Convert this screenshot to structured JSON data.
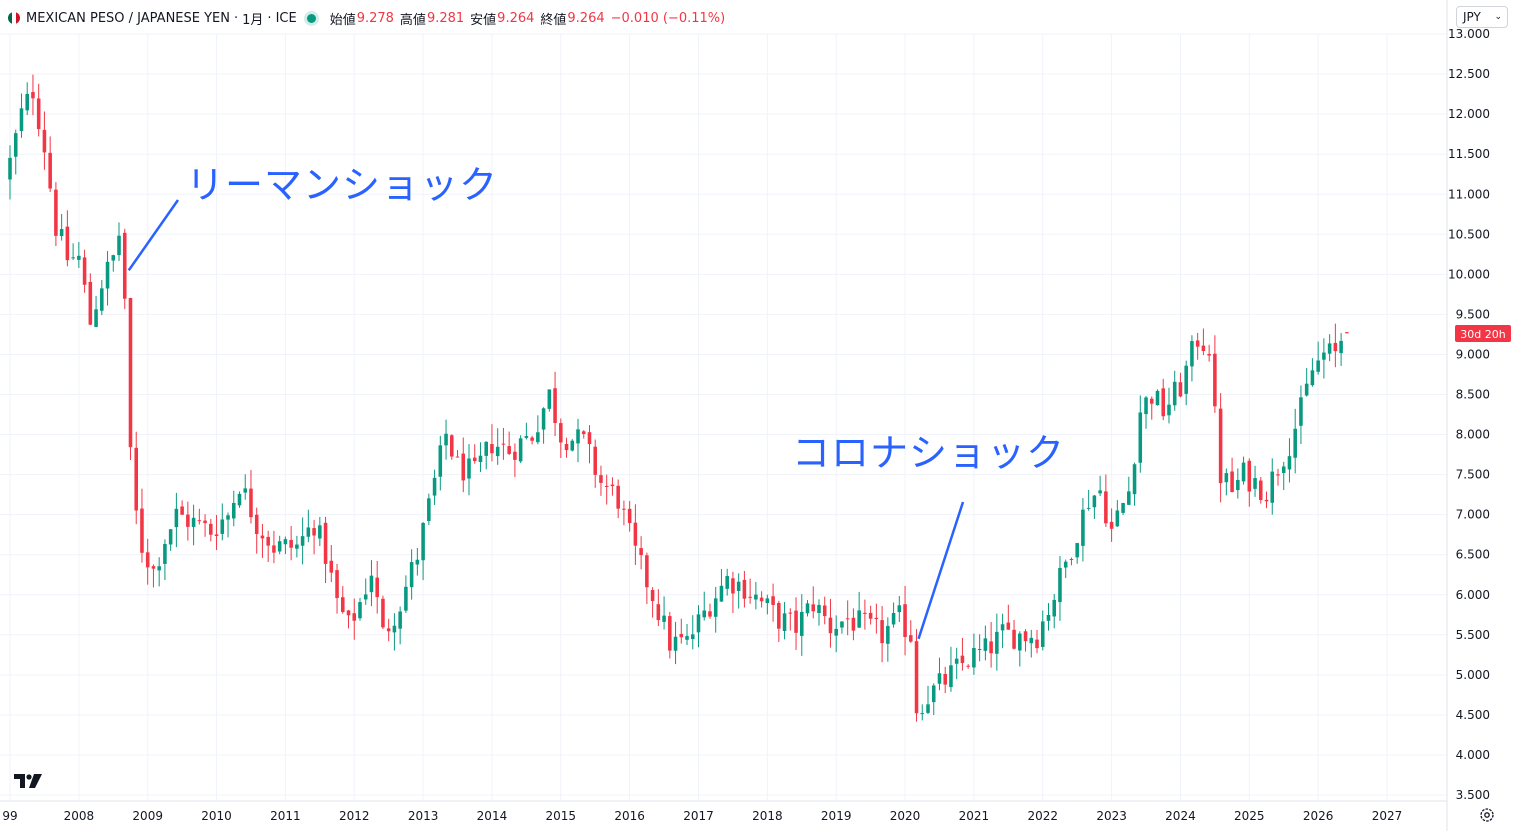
{
  "header": {
    "symbol": "MEXICAN PESO / JAPANESE YEN",
    "sep1": "·",
    "interval": "1月",
    "sep2": "·",
    "exchange": "ICE",
    "open_label": "始値",
    "open_value": "9.278",
    "high_label": "高値",
    "high_value": "9.281",
    "low_label": "安値",
    "low_value": "9.264",
    "close_label": "終値",
    "close_value": "9.264",
    "change": "−0.010 (−0.11%)"
  },
  "currency_selector": {
    "value": "JPY"
  },
  "price_tag": {
    "value": "30d 20h"
  },
  "annotations": {
    "lehman": "リーマンショック",
    "corona": "コロナショック"
  },
  "colors": {
    "up": "#089981",
    "down": "#f23645",
    "annotation": "#2962ff",
    "grid": "#f0f3fa"
  },
  "chart_data": {
    "type": "candlestick",
    "x_range": [
      "2006-12",
      "2027-06"
    ],
    "ylim": [
      3.5,
      13.0
    ],
    "y_ticks": [
      "3.500",
      "4.000",
      "4.500",
      "5.000",
      "5.500",
      "6.000",
      "6.500",
      "7.000",
      "7.500",
      "8.000",
      "8.500",
      "9.000",
      "9.500",
      "10.000",
      "10.500",
      "11.000",
      "11.500",
      "12.000",
      "12.500",
      "13.000"
    ],
    "x_ticks": [
      "99",
      "2008",
      "2009",
      "2010",
      "2011",
      "2012",
      "2013",
      "2014",
      "2015",
      "2016",
      "2017",
      "2018",
      "2019",
      "2020",
      "2021",
      "2022",
      "2023",
      "2024",
      "2025",
      "2026",
      "2027"
    ],
    "x_tick_dates": [
      "2007-01",
      "2008-01",
      "2009-01",
      "2010-01",
      "2011-01",
      "2012-01",
      "2013-01",
      "2014-01",
      "2015-01",
      "2016-01",
      "2017-01",
      "2018-01",
      "2019-01",
      "2020-01",
      "2021-01",
      "2022-01",
      "2023-01",
      "2024-01",
      "2025-01",
      "2026-01",
      "2027-01"
    ],
    "grid": true,
    "legend": "none",
    "closes": [
      {
        "date": "2007-01",
        "close": 11.4
      },
      {
        "date": "2007-03",
        "close": 12.0
      },
      {
        "date": "2007-05",
        "close": 12.3
      },
      {
        "date": "2007-07",
        "close": 11.6
      },
      {
        "date": "2007-09",
        "close": 10.6
      },
      {
        "date": "2007-11",
        "close": 10.2
      },
      {
        "date": "2008-01",
        "close": 10.2
      },
      {
        "date": "2008-03",
        "close": 9.4
      },
      {
        "date": "2008-05",
        "close": 9.9
      },
      {
        "date": "2008-07",
        "close": 10.2
      },
      {
        "date": "2008-08",
        "close": 10.5
      },
      {
        "date": "2008-09",
        "close": 9.7
      },
      {
        "date": "2008-10",
        "close": 7.7
      },
      {
        "date": "2008-11",
        "close": 7.0
      },
      {
        "date": "2008-12",
        "close": 6.6
      },
      {
        "date": "2009-02",
        "close": 6.3
      },
      {
        "date": "2009-04",
        "close": 6.7
      },
      {
        "date": "2009-06",
        "close": 7.0
      },
      {
        "date": "2009-09",
        "close": 6.9
      },
      {
        "date": "2009-12",
        "close": 6.8
      },
      {
        "date": "2010-03",
        "close": 7.0
      },
      {
        "date": "2010-05",
        "close": 7.4
      },
      {
        "date": "2010-08",
        "close": 6.9
      },
      {
        "date": "2010-11",
        "close": 6.6
      },
      {
        "date": "2011-03",
        "close": 6.6
      },
      {
        "date": "2011-06",
        "close": 6.9
      },
      {
        "date": "2011-08",
        "close": 6.5
      },
      {
        "date": "2011-10",
        "close": 5.9
      },
      {
        "date": "2011-12",
        "close": 5.6
      },
      {
        "date": "2012-02",
        "close": 5.9
      },
      {
        "date": "2012-04",
        "close": 6.3
      },
      {
        "date": "2012-06",
        "close": 5.5
      },
      {
        "date": "2012-09",
        "close": 5.9
      },
      {
        "date": "2012-12",
        "close": 6.5
      },
      {
        "date": "2013-03",
        "close": 7.4
      },
      {
        "date": "2013-05",
        "close": 8.0
      },
      {
        "date": "2013-07",
        "close": 7.6
      },
      {
        "date": "2013-10",
        "close": 7.5
      },
      {
        "date": "2014-01",
        "close": 7.9
      },
      {
        "date": "2014-04",
        "close": 7.8
      },
      {
        "date": "2014-08",
        "close": 8.0
      },
      {
        "date": "2014-11",
        "close": 8.5
      },
      {
        "date": "2015-01",
        "close": 8.0
      },
      {
        "date": "2015-05",
        "close": 7.9
      },
      {
        "date": "2015-08",
        "close": 7.4
      },
      {
        "date": "2015-11",
        "close": 7.2
      },
      {
        "date": "2016-02",
        "close": 6.5
      },
      {
        "date": "2016-05",
        "close": 6.0
      },
      {
        "date": "2016-08",
        "close": 5.4
      },
      {
        "date": "2016-11",
        "close": 5.4
      },
      {
        "date": "2017-03",
        "close": 5.9
      },
      {
        "date": "2017-06",
        "close": 6.2
      },
      {
        "date": "2017-09",
        "close": 6.1
      },
      {
        "date": "2017-12",
        "close": 5.9
      },
      {
        "date": "2018-03",
        "close": 5.7
      },
      {
        "date": "2018-06",
        "close": 5.6
      },
      {
        "date": "2018-09",
        "close": 5.9
      },
      {
        "date": "2018-12",
        "close": 5.6
      },
      {
        "date": "2019-03",
        "close": 5.7
      },
      {
        "date": "2019-06",
        "close": 5.6
      },
      {
        "date": "2019-09",
        "close": 5.5
      },
      {
        "date": "2019-12",
        "close": 5.7
      },
      {
        "date": "2020-02",
        "close": 5.5
      },
      {
        "date": "2020-03",
        "close": 4.6
      },
      {
        "date": "2020-06",
        "close": 4.8
      },
      {
        "date": "2020-09",
        "close": 5.0
      },
      {
        "date": "2020-12",
        "close": 5.2
      },
      {
        "date": "2021-03",
        "close": 5.3
      },
      {
        "date": "2021-06",
        "close": 5.5
      },
      {
        "date": "2021-09",
        "close": 5.5
      },
      {
        "date": "2021-12",
        "close": 5.5
      },
      {
        "date": "2022-03",
        "close": 6.0
      },
      {
        "date": "2022-06",
        "close": 6.6
      },
      {
        "date": "2022-09",
        "close": 7.2
      },
      {
        "date": "2022-11",
        "close": 7.3
      },
      {
        "date": "2023-01",
        "close": 6.8
      },
      {
        "date": "2023-04",
        "close": 7.3
      },
      {
        "date": "2023-06",
        "close": 8.3
      },
      {
        "date": "2023-08",
        "close": 8.5
      },
      {
        "date": "2023-10",
        "close": 8.3
      },
      {
        "date": "2024-01",
        "close": 8.6
      },
      {
        "date": "2024-04",
        "close": 9.2
      },
      {
        "date": "2024-06",
        "close": 9.1
      },
      {
        "date": "2024-07",
        "close": 8.2
      },
      {
        "date": "2024-08",
        "close": 7.5
      },
      {
        "date": "2024-10",
        "close": 7.3
      },
      {
        "date": "2024-12",
        "close": 7.5
      },
      {
        "date": "2025-02",
        "close": 7.4
      },
      {
        "date": "2025-04",
        "close": 7.3
      },
      {
        "date": "2025-06",
        "close": 7.6
      },
      {
        "date": "2025-08",
        "close": 7.9
      },
      {
        "date": "2025-10",
        "close": 8.3
      },
      {
        "date": "2025-12",
        "close": 8.8
      },
      {
        "date": "2026-02",
        "close": 9.0
      },
      {
        "date": "2026-04",
        "close": 9.0
      },
      {
        "date": "2026-05",
        "close": 9.2
      },
      {
        "date": "2026-06",
        "close": 9.264
      }
    ]
  }
}
